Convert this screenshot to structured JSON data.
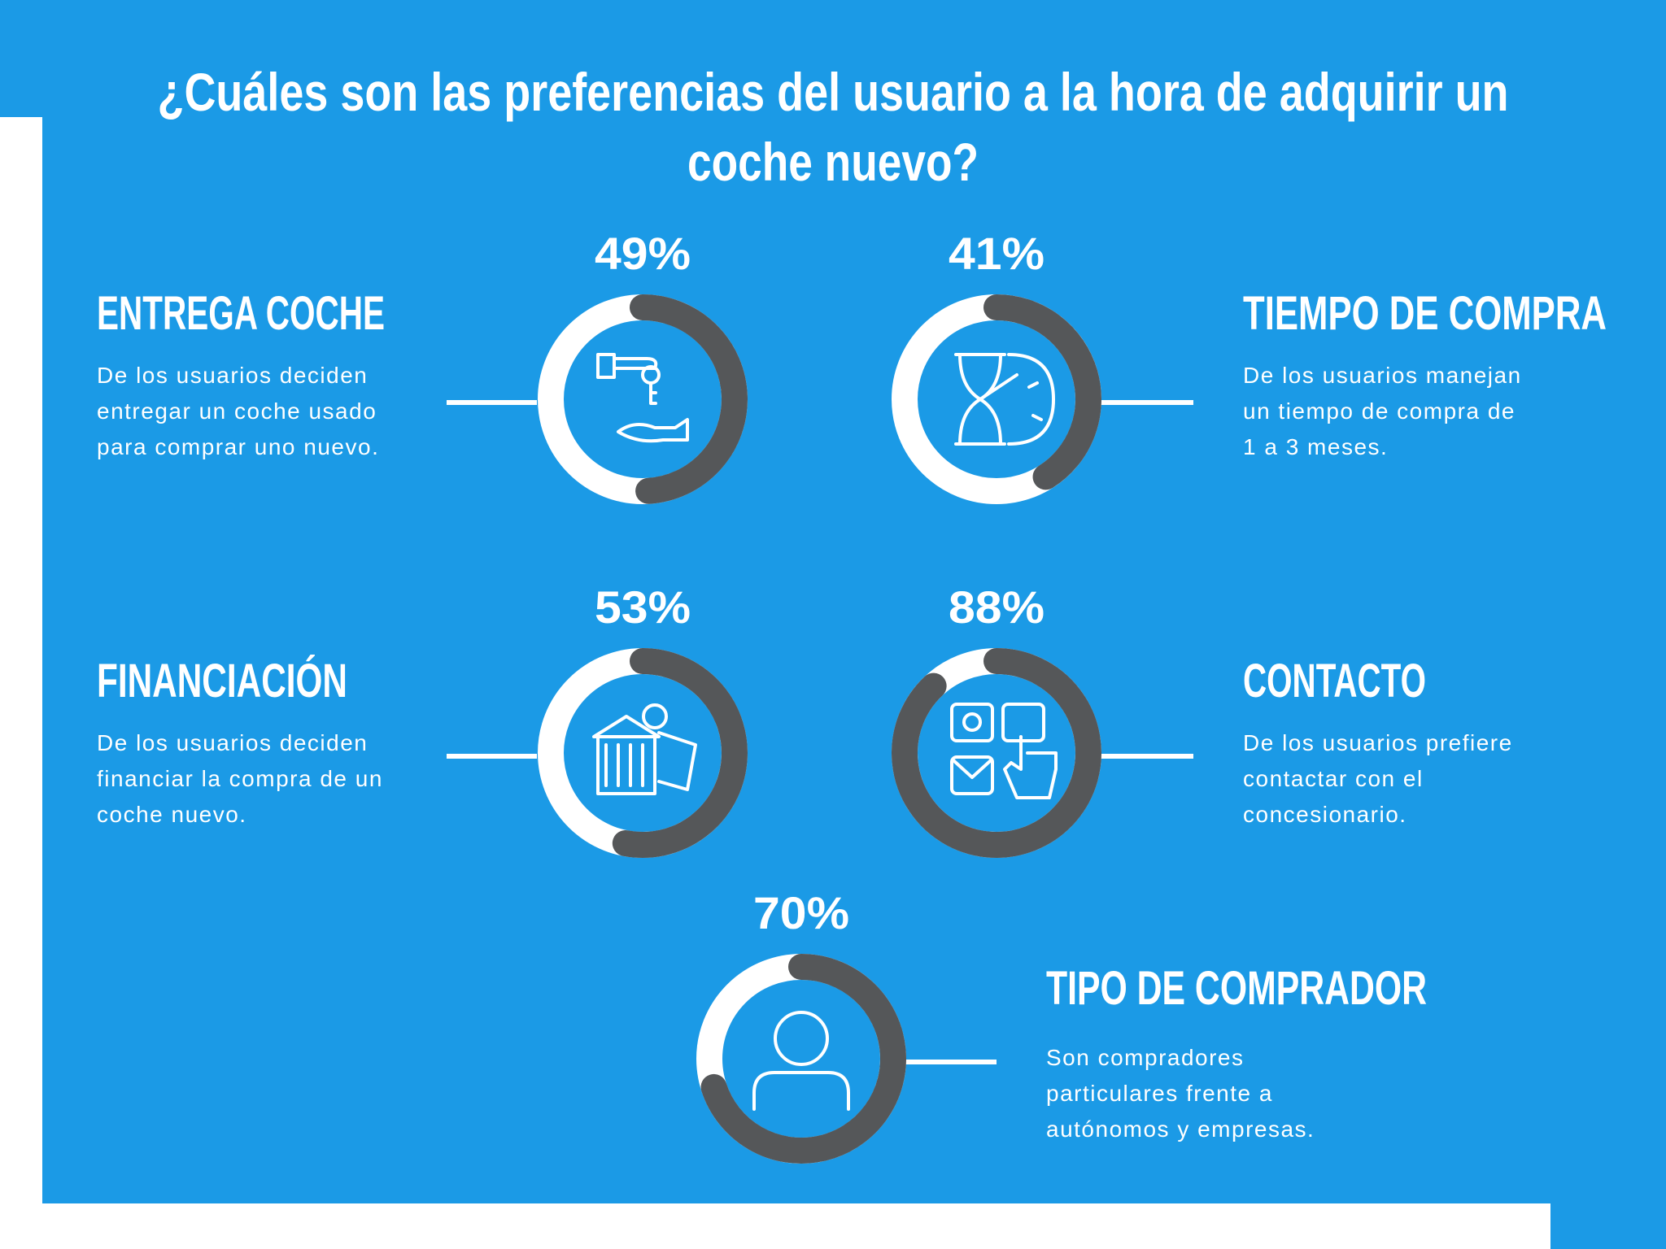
{
  "title": {
    "lines": [
      "¿Cuáles son las preferencias del usuario a la hora de adquirir un",
      "coche nuevo?"
    ]
  },
  "items": [
    {
      "value": 49,
      "value_label": "49%",
      "heading": "ENTREGA COCHE",
      "description": [
        "De los usuarios deciden",
        "entregar un coche usado",
        "para comprar uno nuevo."
      ]
    },
    {
      "value": 41,
      "value_label": "41%",
      "heading": "TIEMPO DE COMPRA",
      "description": [
        "De los usuarios manejan",
        "un tiempo de compra de",
        "1 a 3 meses."
      ]
    },
    {
      "value": 53,
      "value_label": "53%",
      "heading": "FINANCIACIÓN",
      "description": [
        "De los usuarios deciden",
        "financiar la compra de un",
        "coche nuevo."
      ]
    },
    {
      "value": 88,
      "value_label": "88%",
      "heading": "CONTACTO",
      "description": [
        "De los usuarios prefiere",
        "contactar con el",
        "concesionario."
      ]
    },
    {
      "value": 70,
      "value_label": "70%",
      "heading": "TIPO DE COMPRADOR",
      "description": [
        "Son compradores",
        "particulares frente a",
        "autónomos y empresas."
      ]
    }
  ]
}
